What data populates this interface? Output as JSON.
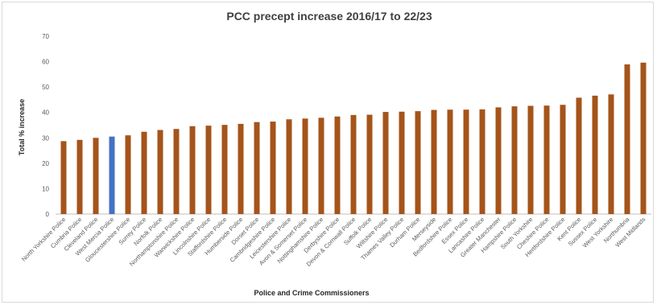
{
  "chart_data": {
    "type": "bar",
    "title": "PCC precept increase 2016/17 to 22/23",
    "xlabel": "Police and Crime Commissioners",
    "ylabel": "Total % increase",
    "ylim": [
      0,
      70
    ],
    "yticks": [
      0,
      10,
      20,
      30,
      40,
      50,
      60,
      70
    ],
    "grid": false,
    "legend": "none",
    "colors": {
      "default": "#a5541a",
      "highlight": "#4472c4",
      "axis": "#bfbfbf"
    },
    "highlight_category": "West Mercia Police",
    "categories": [
      "North Yorkshire Police",
      "Cumbria Police",
      "Cleveland Police",
      "West Mercia Police",
      "Gloucestershire Police",
      "Surrey Police",
      "Norfolk Police",
      "Northamptonshire Police",
      "Warwickshire Police",
      "Lincolnshire Police",
      "Staffordshire Police",
      "Humberside Police",
      "Dorset Police",
      "Cambridgeshire Police",
      "Leicestershire Police",
      "Avon & Somerset Police",
      "Nottinghamshire Police",
      "Derbyshire Police",
      "Devon & Cornwall Police",
      "Suffolk Police",
      "Wiltshire Police",
      "Thames Valley Police",
      "Durham Police",
      "Merseyside",
      "Bedfordshire Police",
      "Essex Police",
      "Lancashire Police",
      "Greater Manchester",
      "Hampshire Police",
      "South Yorkshire",
      "Cheshire Police",
      "Hertfordshire Police",
      "Kent Police",
      "Sussex Police",
      "West Yorkshire",
      "Northumbria",
      "West Midlands"
    ],
    "values": [
      28.7,
      29.2,
      30.0,
      30.5,
      31.0,
      32.4,
      33.1,
      33.5,
      34.6,
      34.8,
      35.1,
      35.5,
      36.2,
      36.4,
      37.3,
      37.6,
      37.9,
      38.4,
      39.0,
      39.1,
      40.2,
      40.3,
      40.5,
      41.0,
      41.1,
      41.1,
      41.2,
      42.0,
      42.4,
      42.6,
      42.7,
      43.0,
      45.8,
      46.6,
      47.1,
      58.9,
      59.6
    ]
  }
}
